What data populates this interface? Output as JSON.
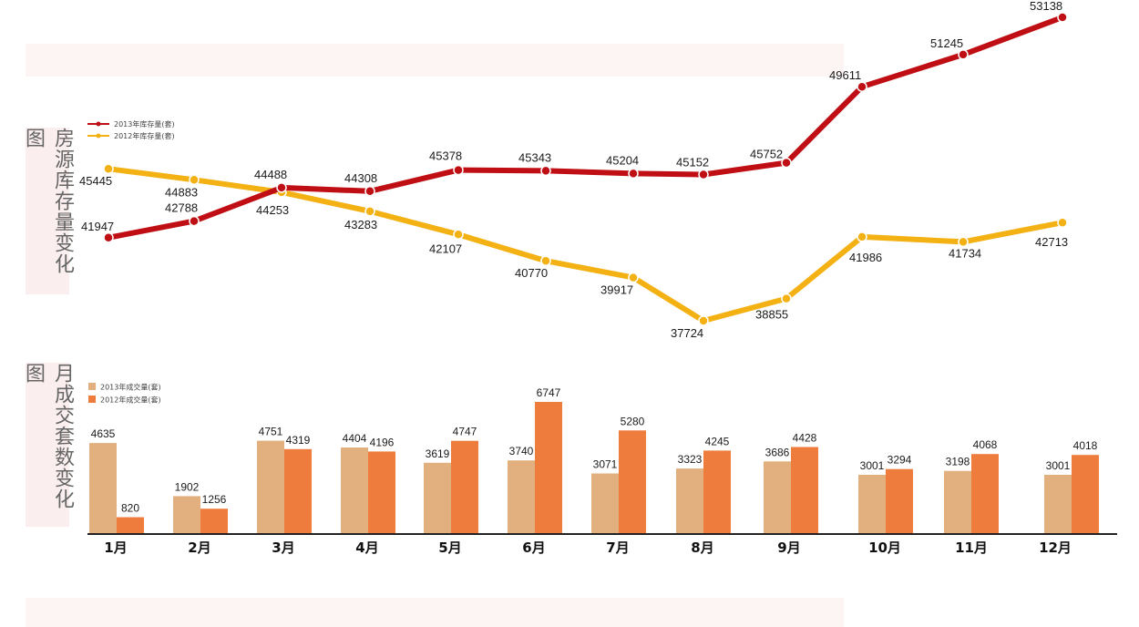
{
  "titles": {
    "inventory": "房源库存量变化图",
    "sales": "月成交套数变化图"
  },
  "chart_data": [
    {
      "type": "line",
      "categories": [
        "1月",
        "2月",
        "3月",
        "4月",
        "5月",
        "6月",
        "7月",
        "8月",
        "9月",
        "10月",
        "11月",
        "12月"
      ],
      "series": [
        {
          "name": "2013年库存量(套)",
          "color": "#c00f14",
          "values": [
            41947,
            42788,
            44488,
            44308,
            45378,
            45343,
            45204,
            45152,
            45752,
            49611,
            51245,
            53138
          ]
        },
        {
          "name": "2012年库存量(套)",
          "color": "#f3b113",
          "values": [
            45445,
            44883,
            44253,
            43283,
            42107,
            40770,
            39917,
            37724,
            38855,
            41986,
            41734,
            42713
          ]
        }
      ],
      "ylim": [
        36000,
        54000
      ],
      "legend": "top-left",
      "grid": false
    },
    {
      "type": "bar",
      "categories": [
        "1月",
        "2月",
        "3月",
        "4月",
        "5月",
        "6月",
        "7月",
        "8月",
        "9月",
        "10月",
        "11月",
        "12月"
      ],
      "series": [
        {
          "name": "2013年成交量(套)",
          "color": "#e2b07e",
          "values": [
            4635,
            1902,
            4751,
            4404,
            3619,
            3740,
            3071,
            3323,
            3686,
            3001,
            3198,
            3001
          ]
        },
        {
          "name": "2012年成交量(套)",
          "color": "#ee7d3d",
          "values": [
            820,
            1256,
            4319,
            4196,
            4747,
            6747,
            5280,
            4245,
            4428,
            3294,
            4068,
            4018
          ]
        }
      ],
      "ylim": [
        0,
        7000
      ],
      "legend": "top-left",
      "grid": false
    }
  ]
}
